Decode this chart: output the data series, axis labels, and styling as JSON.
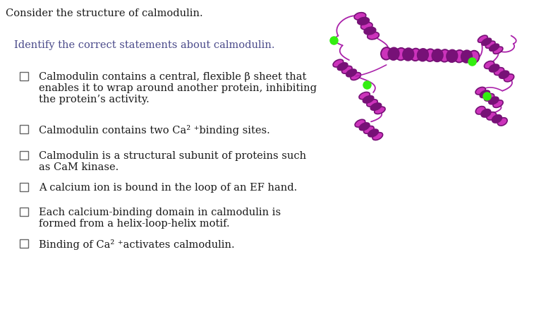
{
  "title": "Consider the structure of calmodulin.",
  "subtitle": "Identify the correct statements about calmodulin.",
  "statements": [
    [
      "Calmodulin contains a central, flexible β sheet that",
      "enables it to wrap around another protein, inhibiting",
      "the protein’s activity."
    ],
    [
      "Calmodulin contains two Ca² ⁺ binding sites."
    ],
    [
      "Calmodulin is a structural subunit of proteins such",
      "as CaM kinase."
    ],
    [
      "A calcium ion is bound in the loop of an EF hand."
    ],
    [
      "Each calcium-binding domain in calmodulin is",
      "formed from a helix-loop-helix motif."
    ],
    [
      "Binding of Ca² ⁺ activates calmodulin."
    ]
  ],
  "bg_color": "#ffffff",
  "text_color": "#1a1a1a",
  "subtitle_color": "#4a4a8a",
  "title_fontsize": 10.5,
  "subtitle_fontsize": 10.5,
  "statement_fontsize": 10.5,
  "protein_color": "#CC33BB",
  "protein_dark": "#771177",
  "ca_color": "#33EE11",
  "line_color": "#AA22AA"
}
